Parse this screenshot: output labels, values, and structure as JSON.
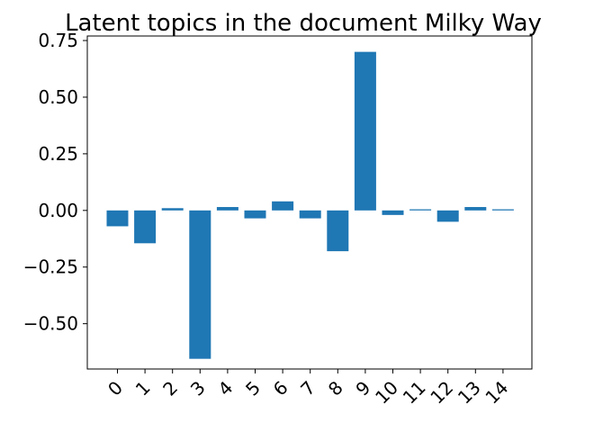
{
  "chart_data": {
    "type": "bar",
    "title": "Latent topics in the document Milky Way",
    "xlabel": "",
    "ylabel": "",
    "categories": [
      "0",
      "1",
      "2",
      "3",
      "4",
      "5",
      "6",
      "7",
      "8",
      "9",
      "10",
      "11",
      "12",
      "13",
      "14"
    ],
    "values": [
      -0.07,
      -0.145,
      0.01,
      -0.655,
      0.015,
      -0.035,
      0.04,
      -0.035,
      -0.18,
      0.7,
      -0.02,
      0.005,
      -0.05,
      0.015,
      0.005
    ],
    "ylim": [
      -0.7,
      0.77
    ],
    "yticks": [
      -0.5,
      -0.25,
      0.0,
      0.25,
      0.5,
      0.75
    ],
    "ytick_labels": [
      "−0.50",
      "−0.25",
      "0.00",
      "0.25",
      "0.50",
      "0.75"
    ],
    "xtick_rotation_deg": 45,
    "grid": false,
    "bar_color": "#1f77b4"
  }
}
